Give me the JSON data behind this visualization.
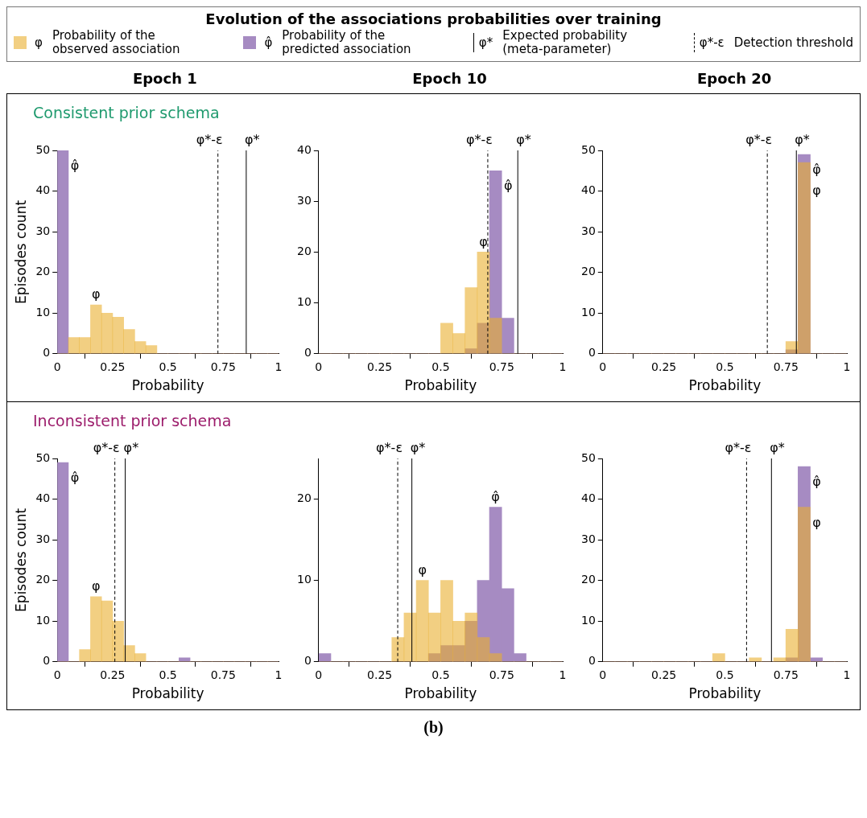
{
  "chart_data": [
    {
      "type": "other",
      "title": "Evolution of the associations probabilities over training",
      "annotations": [
        "φ",
        "Probability of the observed association",
        "φ̂",
        "Probability of the predicted association",
        "φ*",
        "Expected probability (meta-parameter)",
        "φ*-ε",
        "Detection threshold",
        "(b)"
      ]
    },
    {
      "type": "histogram",
      "title": "Epoch 1",
      "subtitle": "Consistent prior schema",
      "xlabel": "Probability",
      "ylabel": "Episodes count",
      "bins": [
        0,
        0.05,
        0.1,
        0.15,
        0.2,
        0.25,
        0.3,
        0.35,
        0.4,
        0.45,
        0.5,
        0.55,
        0.6,
        0.65,
        0.7,
        0.75,
        0.8,
        0.85,
        0.9,
        0.95,
        1
      ],
      "xlim": [
        0,
        1
      ],
      "xticks": [
        0,
        0.25,
        0.5,
        0.75,
        1
      ],
      "ylim": [
        0,
        50
      ],
      "yticks": [
        0,
        10,
        20,
        30,
        40,
        50
      ],
      "series": [
        {
          "name": "φ",
          "color": "#f2cf82",
          "values": [
            0,
            4,
            4,
            12,
            10,
            9,
            6,
            3,
            2,
            0,
            0,
            0,
            0,
            0,
            0,
            0,
            0,
            0,
            0,
            0
          ]
        },
        {
          "name": "φ̂",
          "color": "#a68bc2",
          "values": [
            50,
            0,
            0,
            0,
            0,
            0,
            0,
            0,
            0,
            0,
            0,
            0,
            0,
            0,
            0,
            0,
            0,
            0,
            0,
            0
          ]
        }
      ],
      "ref_lines": [
        {
          "axis": "x",
          "value": 0.726,
          "label": "φ*-ε",
          "line_style": "dashed",
          "color": "#000000"
        },
        {
          "axis": "x",
          "value": 0.854,
          "label": "φ*",
          "line_style": "solid",
          "color": "#000000"
        }
      ],
      "grid": false,
      "legend": false
    },
    {
      "type": "histogram",
      "title": "Epoch 10",
      "xlabel": "Probability",
      "bins": [
        0,
        0.05,
        0.1,
        0.15,
        0.2,
        0.25,
        0.3,
        0.35,
        0.4,
        0.45,
        0.5,
        0.55,
        0.6,
        0.65,
        0.7,
        0.75,
        0.8,
        0.85,
        0.9,
        0.95,
        1
      ],
      "xlim": [
        0,
        1
      ],
      "xticks": [
        0,
        0.25,
        0.5,
        0.75,
        1
      ],
      "ylim": [
        0,
        40
      ],
      "yticks": [
        0,
        10,
        20,
        30,
        40
      ],
      "series": [
        {
          "name": "φ",
          "color": "#f2cf82",
          "values": [
            0,
            0,
            0,
            0,
            0,
            0,
            0,
            0,
            0,
            0,
            6,
            4,
            13,
            20,
            7,
            0,
            0,
            0,
            0,
            0
          ]
        },
        {
          "name": "φ̂",
          "color": "#a68bc2",
          "values": [
            0,
            0,
            0,
            0,
            0,
            0,
            0,
            0,
            0,
            0,
            0,
            0,
            1,
            6,
            36,
            7,
            0,
            0,
            0,
            0
          ]
        }
      ],
      "ref_lines": [
        {
          "axis": "x",
          "value": 0.693,
          "label": "φ*-ε",
          "line_style": "dashed",
          "color": "#000000"
        },
        {
          "axis": "x",
          "value": 0.816,
          "label": "φ*",
          "line_style": "solid",
          "color": "#000000"
        }
      ],
      "grid": false,
      "legend": false
    },
    {
      "type": "histogram",
      "title": "Epoch 20",
      "xlabel": "Probability",
      "bins": [
        0,
        0.05,
        0.1,
        0.15,
        0.2,
        0.25,
        0.3,
        0.35,
        0.4,
        0.45,
        0.5,
        0.55,
        0.6,
        0.65,
        0.7,
        0.75,
        0.8,
        0.85,
        0.9,
        0.95,
        1
      ],
      "xlim": [
        0,
        1
      ],
      "xticks": [
        0,
        0.25,
        0.5,
        0.75,
        1
      ],
      "ylim": [
        0,
        50
      ],
      "yticks": [
        0,
        10,
        20,
        30,
        40,
        50
      ],
      "series": [
        {
          "name": "φ",
          "color": "#f2cf82",
          "values": [
            0,
            0,
            0,
            0,
            0,
            0,
            0,
            0,
            0,
            0,
            0,
            0,
            0,
            0,
            0,
            3,
            47,
            0,
            0,
            0
          ]
        },
        {
          "name": "φ̂",
          "color": "#a68bc2",
          "values": [
            0,
            0,
            0,
            0,
            0,
            0,
            0,
            0,
            0,
            0,
            0,
            0,
            0,
            0,
            0,
            1,
            49,
            0,
            0,
            0
          ]
        }
      ],
      "ref_lines": [
        {
          "axis": "x",
          "value": 0.674,
          "label": "φ*-ε",
          "line_style": "dashed",
          "color": "#000000"
        },
        {
          "axis": "x",
          "value": 0.793,
          "label": "φ*",
          "line_style": "solid",
          "color": "#000000"
        }
      ],
      "grid": false,
      "legend": false
    },
    {
      "type": "histogram",
      "subtitle": "Inconsistent prior schema",
      "xlabel": "Probability",
      "ylabel": "Episodes count",
      "bins": [
        0,
        0.05,
        0.1,
        0.15,
        0.2,
        0.25,
        0.3,
        0.35,
        0.4,
        0.45,
        0.5,
        0.55,
        0.6,
        0.65,
        0.7,
        0.75,
        0.8,
        0.85,
        0.9,
        0.95,
        1
      ],
      "xlim": [
        0,
        1
      ],
      "xticks": [
        0,
        0.25,
        0.5,
        0.75,
        1
      ],
      "ylim": [
        0,
        50
      ],
      "yticks": [
        0,
        10,
        20,
        30,
        40,
        50
      ],
      "series": [
        {
          "name": "φ",
          "color": "#f2cf82",
          "values": [
            0,
            0,
            3,
            16,
            15,
            10,
            4,
            2,
            0,
            0,
            0,
            0,
            0,
            0,
            0,
            0,
            0,
            0,
            0,
            0
          ]
        },
        {
          "name": "φ̂",
          "color": "#a68bc2",
          "values": [
            49,
            0,
            0,
            0,
            0,
            0,
            0,
            0,
            0,
            0,
            0,
            1,
            0,
            0,
            0,
            0,
            0,
            0,
            0,
            0
          ]
        }
      ],
      "ref_lines": [
        {
          "axis": "x",
          "value": 0.26,
          "label": "φ*-ε",
          "line_style": "dashed",
          "color": "#000000"
        },
        {
          "axis": "x",
          "value": 0.307,
          "label": "φ*",
          "line_style": "solid",
          "color": "#000000"
        }
      ],
      "grid": false,
      "legend": false
    },
    {
      "type": "histogram",
      "xlabel": "Probability",
      "bins": [
        0,
        0.05,
        0.1,
        0.15,
        0.2,
        0.25,
        0.3,
        0.35,
        0.4,
        0.45,
        0.5,
        0.55,
        0.6,
        0.65,
        0.7,
        0.75,
        0.8,
        0.85,
        0.9,
        0.95,
        1
      ],
      "xlim": [
        0,
        1
      ],
      "xticks": [
        0,
        0.25,
        0.5,
        0.75,
        1
      ],
      "ylim": [
        0,
        25
      ],
      "yticks": [
        0,
        10,
        20
      ],
      "series": [
        {
          "name": "φ",
          "color": "#f2cf82",
          "values": [
            0,
            0,
            0,
            0,
            0,
            0,
            3,
            6,
            10,
            6,
            10,
            5,
            6,
            3,
            1,
            0,
            0,
            0,
            0,
            0
          ]
        },
        {
          "name": "φ̂",
          "color": "#a68bc2",
          "values": [
            1,
            0,
            0,
            0,
            0,
            0,
            0,
            0,
            0,
            1,
            2,
            2,
            5,
            10,
            19,
            9,
            1,
            0,
            0,
            0
          ]
        }
      ],
      "ref_lines": [
        {
          "axis": "x",
          "value": 0.324,
          "label": "φ*-ε",
          "line_style": "dashed",
          "color": "#000000"
        },
        {
          "axis": "x",
          "value": 0.382,
          "label": "φ*",
          "line_style": "solid",
          "color": "#000000"
        }
      ],
      "grid": false,
      "legend": false
    },
    {
      "type": "histogram",
      "xlabel": "Probability",
      "bins": [
        0,
        0.05,
        0.1,
        0.15,
        0.2,
        0.25,
        0.3,
        0.35,
        0.4,
        0.45,
        0.5,
        0.55,
        0.6,
        0.65,
        0.7,
        0.75,
        0.8,
        0.85,
        0.9,
        0.95,
        1
      ],
      "xlim": [
        0,
        1
      ],
      "xticks": [
        0,
        0.25,
        0.5,
        0.75,
        1
      ],
      "ylim": [
        0,
        50
      ],
      "yticks": [
        0,
        10,
        20,
        30,
        40,
        50
      ],
      "series": [
        {
          "name": "φ",
          "color": "#f2cf82",
          "values": [
            0,
            0,
            0,
            0,
            0,
            0,
            0,
            0,
            0,
            2,
            0,
            0,
            1,
            0,
            1,
            8,
            38,
            0,
            0,
            0
          ]
        },
        {
          "name": "φ̂",
          "color": "#a68bc2",
          "values": [
            0,
            0,
            0,
            0,
            0,
            0,
            0,
            0,
            0,
            0,
            0,
            0,
            0,
            0,
            0,
            1,
            48,
            1,
            0,
            0
          ]
        }
      ],
      "ref_lines": [
        {
          "axis": "x",
          "value": 0.589,
          "label": "φ*-ε",
          "line_style": "dashed",
          "color": "#000000"
        },
        {
          "axis": "x",
          "value": 0.691,
          "label": "φ*",
          "line_style": "solid",
          "color": "#000000"
        }
      ],
      "grid": false,
      "legend": false
    }
  ]
}
